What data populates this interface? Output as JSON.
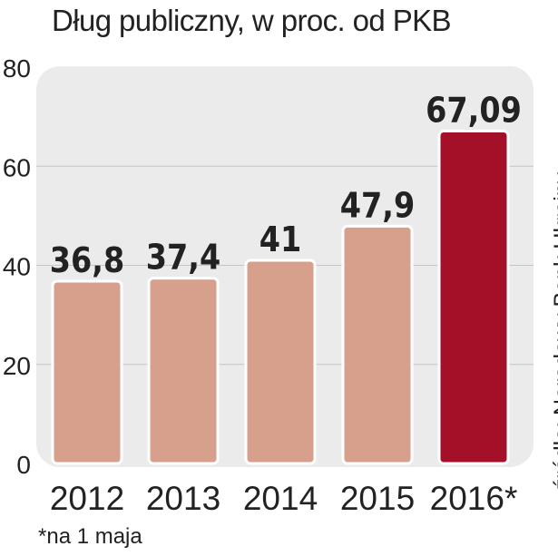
{
  "title": "Dług publiczny, w proc. od PKB",
  "footnote": "*na 1 maja",
  "source": "źródło: Narodowy Bank Ukrainy",
  "colors": {
    "panel": "#ebebeb",
    "bar": "#d6a08c",
    "bar_highlight": "#a31028",
    "text": "#222222"
  },
  "chart_data": {
    "type": "bar",
    "title": "Dług publiczny, w proc. od PKB",
    "categories": [
      "2012",
      "2013",
      "2014",
      "2015",
      "2016*"
    ],
    "values": [
      36.8,
      37.4,
      41,
      47.9,
      67.09
    ],
    "value_labels": [
      "36,8",
      "37,4",
      "41",
      "47,9",
      "67,09"
    ],
    "highlight_index": 4,
    "yticks": [
      "0",
      "20",
      "40",
      "60",
      "80"
    ],
    "ylim": [
      0,
      80
    ],
    "grid": true,
    "legend": "none"
  }
}
